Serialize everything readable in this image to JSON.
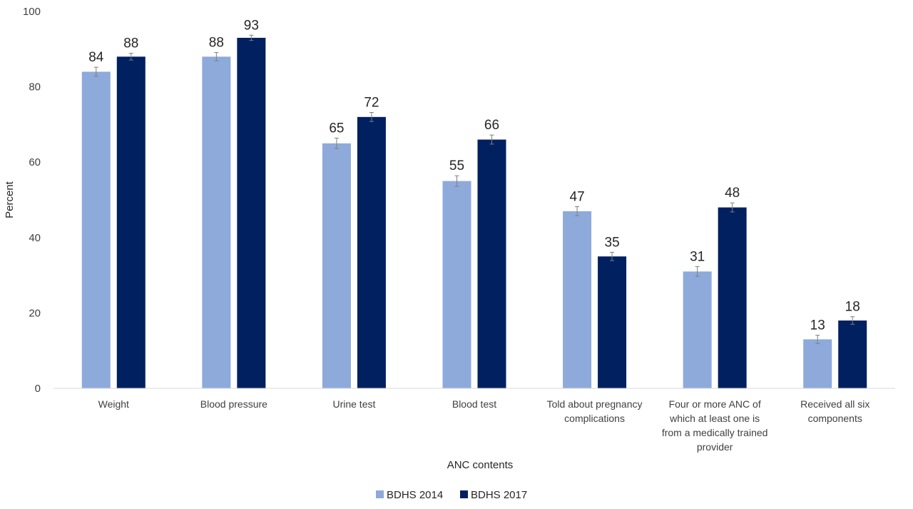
{
  "chart_data": {
    "type": "bar",
    "xlabel": "ANC contents",
    "ylabel": "Percent",
    "ylim": [
      0,
      100
    ],
    "yticks": [
      0,
      20,
      40,
      60,
      80,
      100
    ],
    "grid": false,
    "legend_position": "bottom",
    "categories": [
      [
        "Weight"
      ],
      [
        "Blood pressure"
      ],
      [
        "Urine test"
      ],
      [
        "Blood test"
      ],
      [
        "Told about pregnancy",
        "complications"
      ],
      [
        "Four or more ANC of",
        "which at least one is",
        "from a medically trained",
        "provider"
      ],
      [
        "Received all six",
        "components"
      ]
    ],
    "series": [
      {
        "name": "BDHS 2014",
        "color": "#8eaadb",
        "values": [
          84,
          88,
          65,
          55,
          47,
          31,
          13
        ],
        "labels": [
          "84",
          "88",
          "65",
          "55",
          "47",
          "31",
          "13"
        ],
        "error": [
          1.2,
          1.1,
          1.4,
          1.4,
          1.2,
          1.3,
          1.1
        ]
      },
      {
        "name": "BDHS 2017",
        "color": "#002060",
        "values": [
          88,
          93,
          72,
          66,
          35,
          48,
          18
        ],
        "labels": [
          "88",
          "93",
          "72",
          "66",
          "35",
          "48",
          "18"
        ],
        "error": [
          0.9,
          0.7,
          1.2,
          1.2,
          1.1,
          1.2,
          1.0
        ]
      }
    ]
  }
}
